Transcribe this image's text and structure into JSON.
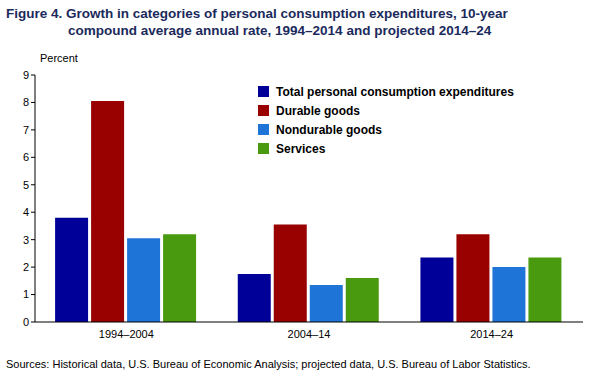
{
  "chart_data": {
    "type": "bar",
    "title": "Figure 4. Growth in categories of personal consumption expenditures, 10-year compound average annual rate, 1994–2014 and projected 2014–24",
    "y_label": "Percent",
    "source": "Sources: Historical data, U.S. Bureau of Economic Analysis; projected data, U.S. Bureau of Labor Statistics.",
    "categories": [
      "1994–2004",
      "2004–14",
      "2014–24"
    ],
    "series": [
      {
        "name": "Total personal consumption expenditures",
        "color": "#000099",
        "values": [
          3.8,
          1.75,
          2.35
        ]
      },
      {
        "name": "Durable goods",
        "color": "#990000",
        "values": [
          8.05,
          3.55,
          3.2
        ]
      },
      {
        "name": "Nondurable goods",
        "color": "#1f74d8",
        "values": [
          3.05,
          1.35,
          2.0
        ]
      },
      {
        "name": "Services",
        "color": "#4a9a10",
        "values": [
          3.2,
          1.6,
          2.35
        ]
      }
    ],
    "ylim": [
      0,
      9
    ],
    "yticks": [
      0,
      1,
      2,
      3,
      4,
      5,
      6,
      7,
      8,
      9
    ],
    "grid": false,
    "legend": "upper right"
  }
}
